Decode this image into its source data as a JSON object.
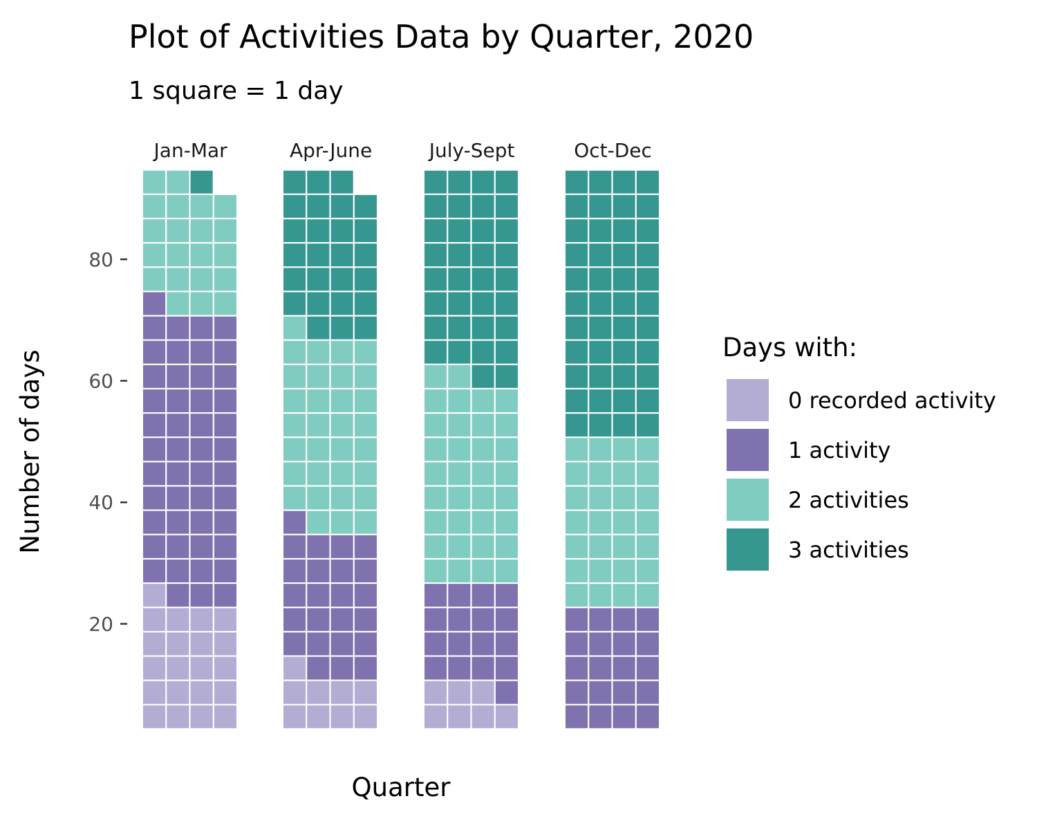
{
  "chart_data": {
    "type": "waffle",
    "title": "Plot of Activities Data by Quarter, 2020",
    "subtitle": "1 square = 1 day",
    "xlabel": "Quarter",
    "ylabel": "Number of days",
    "ylim": [
      0,
      92
    ],
    "yticks": [
      20,
      40,
      60,
      80
    ],
    "columns_per_facet": 4,
    "grid": false,
    "legend": {
      "title": "Days with:",
      "position": "right",
      "items": [
        {
          "label": "0 recorded activity",
          "color": "#b3acd3"
        },
        {
          "label": "1 activity",
          "color": "#8072ae"
        },
        {
          "label": "2 activities",
          "color": "#80ccc0"
        },
        {
          "label": "3 activities",
          "color": "#359790"
        }
      ]
    },
    "facets": [
      {
        "label": "Jan-Mar",
        "counts": [
          21,
          48,
          21,
          1
        ]
      },
      {
        "label": "Apr-June",
        "counts": [
          9,
          24,
          32,
          26
        ]
      },
      {
        "label": "July-Sept",
        "counts": [
          7,
          17,
          34,
          34
        ]
      },
      {
        "label": "Oct-Dec",
        "counts": [
          0,
          20,
          28,
          44
        ]
      }
    ]
  }
}
